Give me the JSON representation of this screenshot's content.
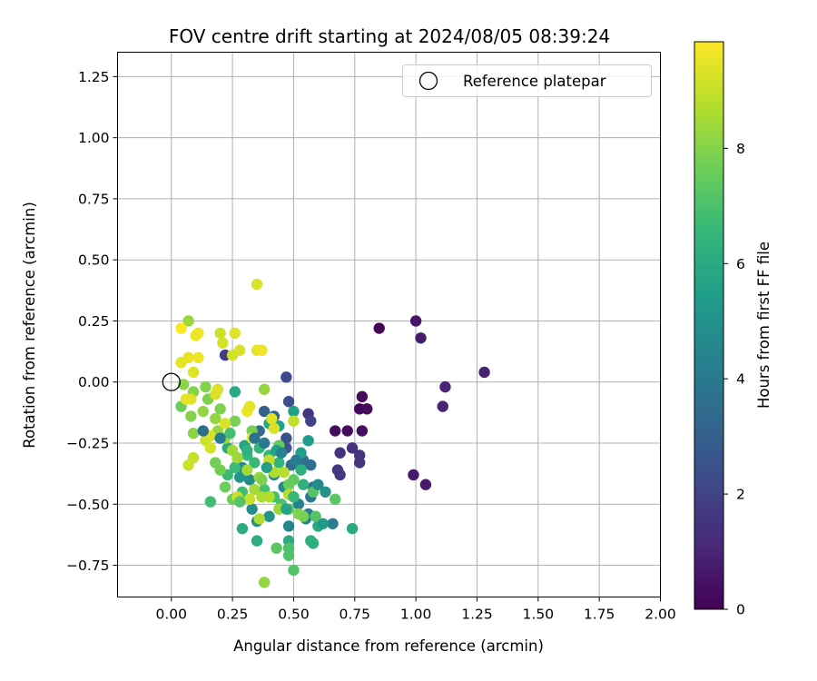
{
  "chart_data": {
    "type": "scatter",
    "title": "FOV centre drift starting at 2024/08/05 08:39:24",
    "xlabel": "Angular distance from reference (arcmin)",
    "ylabel": "Rotation from reference (arcmin)",
    "xlim": [
      -0.22,
      2.0
    ],
    "ylim": [
      -0.88,
      1.35
    ],
    "xticks": [
      "0.00",
      "0.25",
      "0.50",
      "0.75",
      "1.00",
      "1.25",
      "1.50",
      "1.75",
      "2.00"
    ],
    "yticks": [
      "1.25",
      "1.00",
      "0.75",
      "0.50",
      "0.25",
      "0.00",
      "−0.25",
      "−0.50",
      "−0.75"
    ],
    "grid": true,
    "legend": {
      "position": "top-right",
      "entries": [
        "Reference platepar"
      ]
    },
    "reference_point": {
      "x": 0.0,
      "y": 0.0,
      "label": "Reference platepar"
    },
    "colorbar": {
      "label": "Hours from first FF file",
      "range": [
        0,
        9.85
      ],
      "ticks": [
        "0",
        "2",
        "4",
        "6",
        "8"
      ],
      "colormap": "viridis",
      "stops": [
        "#440154",
        "#482878",
        "#3e4989",
        "#31688e",
        "#26828e",
        "#1f9e89",
        "#35b779",
        "#6ece58",
        "#b5de2b",
        "#fde725"
      ]
    },
    "points": [
      {
        "x": 0.85,
        "y": 0.22,
        "c": 0.1
      },
      {
        "x": 1.0,
        "y": 0.25,
        "c": 0.6
      },
      {
        "x": 1.02,
        "y": 0.18,
        "c": 0.8
      },
      {
        "x": 1.28,
        "y": 0.04,
        "c": 0.9
      },
      {
        "x": 1.12,
        "y": -0.02,
        "c": 1.0
      },
      {
        "x": 1.11,
        "y": -0.1,
        "c": 1.0
      },
      {
        "x": 0.78,
        "y": -0.06,
        "c": 0.2
      },
      {
        "x": 0.77,
        "y": -0.11,
        "c": 0.2
      },
      {
        "x": 0.8,
        "y": -0.11,
        "c": 0.3
      },
      {
        "x": 0.67,
        "y": -0.2,
        "c": 0.3
      },
      {
        "x": 0.72,
        "y": -0.2,
        "c": 0.3
      },
      {
        "x": 0.78,
        "y": -0.2,
        "c": 0.4
      },
      {
        "x": 0.69,
        "y": -0.29,
        "c": 1.4
      },
      {
        "x": 0.74,
        "y": -0.27,
        "c": 1.4
      },
      {
        "x": 0.77,
        "y": -0.3,
        "c": 1.5
      },
      {
        "x": 0.77,
        "y": -0.33,
        "c": 1.5
      },
      {
        "x": 0.68,
        "y": -0.36,
        "c": 1.6
      },
      {
        "x": 0.69,
        "y": -0.38,
        "c": 1.6
      },
      {
        "x": 0.99,
        "y": -0.38,
        "c": 0.7
      },
      {
        "x": 1.04,
        "y": -0.42,
        "c": 0.7
      },
      {
        "x": 0.56,
        "y": -0.13,
        "c": 1.5
      },
      {
        "x": 0.57,
        "y": -0.16,
        "c": 2.0
      },
      {
        "x": 0.47,
        "y": 0.02,
        "c": 2.2
      },
      {
        "x": 0.48,
        "y": -0.08,
        "c": 2.4
      },
      {
        "x": 0.47,
        "y": -0.23,
        "c": 2.5
      },
      {
        "x": 0.47,
        "y": -0.27,
        "c": 2.6
      },
      {
        "x": 0.22,
        "y": 0.11,
        "c": 1.8
      },
      {
        "x": 0.38,
        "y": -0.12,
        "c": 3.0
      },
      {
        "x": 0.42,
        "y": -0.14,
        "c": 3.2
      },
      {
        "x": 0.36,
        "y": -0.2,
        "c": 3.4
      },
      {
        "x": 0.49,
        "y": -0.34,
        "c": 3.5
      },
      {
        "x": 0.54,
        "y": -0.32,
        "c": 3.6
      },
      {
        "x": 0.57,
        "y": -0.34,
        "c": 3.6
      },
      {
        "x": 0.58,
        "y": -0.43,
        "c": 3.8
      },
      {
        "x": 0.57,
        "y": -0.47,
        "c": 3.9
      },
      {
        "x": 0.56,
        "y": -0.54,
        "c": 4.0
      },
      {
        "x": 0.66,
        "y": -0.58,
        "c": 4.2
      },
      {
        "x": 0.52,
        "y": -0.5,
        "c": 4.3
      },
      {
        "x": 0.55,
        "y": -0.56,
        "c": 4.4
      },
      {
        "x": 0.48,
        "y": -0.59,
        "c": 4.5
      },
      {
        "x": 0.42,
        "y": -0.38,
        "c": 4.6
      },
      {
        "x": 0.46,
        "y": -0.43,
        "c": 4.7
      },
      {
        "x": 0.33,
        "y": -0.52,
        "c": 4.8
      },
      {
        "x": 0.35,
        "y": -0.57,
        "c": 4.9
      },
      {
        "x": 0.4,
        "y": -0.55,
        "c": 5.0
      },
      {
        "x": 0.29,
        "y": -0.35,
        "c": 4.6
      },
      {
        "x": 0.32,
        "y": -0.4,
        "c": 4.8
      },
      {
        "x": 0.28,
        "y": -0.39,
        "c": 5.2
      },
      {
        "x": 0.56,
        "y": -0.24,
        "c": 5.4
      },
      {
        "x": 0.53,
        "y": -0.29,
        "c": 5.5
      },
      {
        "x": 0.5,
        "y": -0.12,
        "c": 5.6
      },
      {
        "x": 0.44,
        "y": -0.18,
        "c": 5.6
      },
      {
        "x": 0.4,
        "y": -0.17,
        "c": 5.7
      },
      {
        "x": 0.3,
        "y": -0.26,
        "c": 5.8
      },
      {
        "x": 0.26,
        "y": -0.04,
        "c": 5.9
      },
      {
        "x": 0.23,
        "y": -0.27,
        "c": 6.0
      },
      {
        "x": 0.29,
        "y": -0.6,
        "c": 6.0
      },
      {
        "x": 0.35,
        "y": -0.65,
        "c": 6.1
      },
      {
        "x": 0.48,
        "y": -0.65,
        "c": 6.1
      },
      {
        "x": 0.57,
        "y": -0.65,
        "c": 6.2
      },
      {
        "x": 0.58,
        "y": -0.66,
        "c": 6.2
      },
      {
        "x": 0.6,
        "y": -0.59,
        "c": 5.9
      },
      {
        "x": 0.74,
        "y": -0.6,
        "c": 6.0
      },
      {
        "x": 0.53,
        "y": -0.36,
        "c": 6.2
      },
      {
        "x": 0.54,
        "y": -0.42,
        "c": 6.3
      },
      {
        "x": 0.44,
        "y": -0.33,
        "c": 6.4
      },
      {
        "x": 0.4,
        "y": -0.3,
        "c": 6.5
      },
      {
        "x": 0.36,
        "y": -0.27,
        "c": 6.5
      },
      {
        "x": 0.34,
        "y": -0.33,
        "c": 6.6
      },
      {
        "x": 0.31,
        "y": -0.3,
        "c": 6.6
      },
      {
        "x": 0.26,
        "y": -0.35,
        "c": 6.7
      },
      {
        "x": 0.23,
        "y": -0.38,
        "c": 6.7
      },
      {
        "x": 0.16,
        "y": -0.49,
        "c": 6.8
      },
      {
        "x": 0.29,
        "y": -0.45,
        "c": 6.8
      },
      {
        "x": 0.38,
        "y": -0.44,
        "c": 6.9
      },
      {
        "x": 0.42,
        "y": -0.47,
        "c": 6.9
      },
      {
        "x": 0.45,
        "y": -0.5,
        "c": 7.0
      },
      {
        "x": 0.48,
        "y": -0.68,
        "c": 7.0
      },
      {
        "x": 0.48,
        "y": -0.71,
        "c": 7.1
      },
      {
        "x": 0.5,
        "y": -0.77,
        "c": 7.1
      },
      {
        "x": 0.59,
        "y": -0.55,
        "c": 7.2
      },
      {
        "x": 0.58,
        "y": -0.45,
        "c": 7.2
      },
      {
        "x": 0.67,
        "y": -0.48,
        "c": 7.3
      },
      {
        "x": 0.43,
        "y": -0.68,
        "c": 7.3
      },
      {
        "x": 0.5,
        "y": -0.4,
        "c": 7.4
      },
      {
        "x": 0.48,
        "y": -0.52,
        "c": 7.4
      },
      {
        "x": 0.48,
        "y": -0.42,
        "c": 7.5
      },
      {
        "x": 0.44,
        "y": -0.26,
        "c": 7.5
      },
      {
        "x": 0.25,
        "y": -0.48,
        "c": 7.6
      },
      {
        "x": 0.22,
        "y": -0.43,
        "c": 7.6
      },
      {
        "x": 0.18,
        "y": -0.33,
        "c": 7.7
      },
      {
        "x": 0.2,
        "y": -0.36,
        "c": 7.7
      },
      {
        "x": 0.33,
        "y": -0.2,
        "c": 7.8
      },
      {
        "x": 0.26,
        "y": -0.16,
        "c": 7.8
      },
      {
        "x": 0.2,
        "y": -0.11,
        "c": 7.9
      },
      {
        "x": 0.15,
        "y": -0.07,
        "c": 7.9
      },
      {
        "x": 0.14,
        "y": -0.02,
        "c": 8.0
      },
      {
        "x": 0.09,
        "y": -0.04,
        "c": 8.0
      },
      {
        "x": 0.08,
        "y": -0.14,
        "c": 8.0
      },
      {
        "x": 0.04,
        "y": -0.1,
        "c": 7.6
      },
      {
        "x": 0.09,
        "y": -0.21,
        "c": 8.1
      },
      {
        "x": 0.05,
        "y": -0.01,
        "c": 8.1
      },
      {
        "x": 0.13,
        "y": -0.12,
        "c": 8.2
      },
      {
        "x": 0.18,
        "y": -0.15,
        "c": 8.2
      },
      {
        "x": 0.19,
        "y": -0.2,
        "c": 8.3
      },
      {
        "x": 0.22,
        "y": -0.23,
        "c": 8.3
      },
      {
        "x": 0.25,
        "y": -0.28,
        "c": 8.4
      },
      {
        "x": 0.27,
        "y": -0.31,
        "c": 8.4
      },
      {
        "x": 0.31,
        "y": -0.36,
        "c": 8.5
      },
      {
        "x": 0.34,
        "y": -0.44,
        "c": 8.5
      },
      {
        "x": 0.37,
        "y": -0.47,
        "c": 8.6
      },
      {
        "x": 0.36,
        "y": -0.56,
        "c": 8.6
      },
      {
        "x": 0.38,
        "y": -0.82,
        "c": 8.2
      },
      {
        "x": 0.38,
        "y": -0.03,
        "c": 8.3
      },
      {
        "x": 0.4,
        "y": -0.47,
        "c": 8.7
      },
      {
        "x": 0.42,
        "y": -0.37,
        "c": 8.7
      },
      {
        "x": 0.46,
        "y": -0.37,
        "c": 8.8
      },
      {
        "x": 0.48,
        "y": -0.46,
        "c": 8.8
      },
      {
        "x": 0.5,
        "y": -0.16,
        "c": 8.9
      },
      {
        "x": 0.4,
        "y": -0.32,
        "c": 8.9
      },
      {
        "x": 0.32,
        "y": -0.48,
        "c": 9.0
      },
      {
        "x": 0.27,
        "y": -0.47,
        "c": 9.0
      },
      {
        "x": 0.09,
        "y": -0.31,
        "c": 9.0
      },
      {
        "x": 0.07,
        "y": -0.34,
        "c": 9.1
      },
      {
        "x": 0.14,
        "y": -0.24,
        "c": 9.1
      },
      {
        "x": 0.16,
        "y": -0.27,
        "c": 9.2
      },
      {
        "x": 0.16,
        "y": -0.22,
        "c": 9.2
      },
      {
        "x": 0.22,
        "y": -0.17,
        "c": 9.3
      },
      {
        "x": 0.19,
        "y": -0.03,
        "c": 9.3
      },
      {
        "x": 0.18,
        "y": -0.05,
        "c": 9.3
      },
      {
        "x": 0.09,
        "y": 0.04,
        "c": 9.4
      },
      {
        "x": 0.08,
        "y": -0.07,
        "c": 9.4
      },
      {
        "x": 0.06,
        "y": -0.07,
        "c": 9.5
      },
      {
        "x": 0.04,
        "y": 0.08,
        "c": 9.5
      },
      {
        "x": 0.07,
        "y": 0.1,
        "c": 9.5
      },
      {
        "x": 0.11,
        "y": 0.1,
        "c": 9.6
      },
      {
        "x": 0.1,
        "y": 0.19,
        "c": 9.6
      },
      {
        "x": 0.11,
        "y": 0.2,
        "c": 9.6
      },
      {
        "x": 0.07,
        "y": 0.25,
        "c": 8.3
      },
      {
        "x": 0.2,
        "y": 0.2,
        "c": 9.1
      },
      {
        "x": 0.21,
        "y": 0.16,
        "c": 9.2
      },
      {
        "x": 0.25,
        "y": 0.11,
        "c": 9.2
      },
      {
        "x": 0.26,
        "y": 0.2,
        "c": 9.4
      },
      {
        "x": 0.28,
        "y": 0.13,
        "c": 9.3
      },
      {
        "x": 0.35,
        "y": 0.13,
        "c": 9.5
      },
      {
        "x": 0.37,
        "y": 0.13,
        "c": 9.6
      },
      {
        "x": 0.35,
        "y": 0.4,
        "c": 9.3
      },
      {
        "x": 0.04,
        "y": 0.22,
        "c": 9.8
      },
      {
        "x": 0.31,
        "y": -0.12,
        "c": 9.6
      },
      {
        "x": 0.32,
        "y": -0.1,
        "c": 9.5
      },
      {
        "x": 0.33,
        "y": -0.23,
        "c": 9.7
      },
      {
        "x": 0.41,
        "y": -0.15,
        "c": 9.4
      },
      {
        "x": 0.42,
        "y": -0.19,
        "c": 9.3
      },
      {
        "x": 0.36,
        "y": -0.39,
        "c": 8.4
      },
      {
        "x": 0.44,
        "y": -0.52,
        "c": 8.4
      },
      {
        "x": 0.52,
        "y": -0.54,
        "c": 8.0
      },
      {
        "x": 0.54,
        "y": -0.55,
        "c": 7.8
      },
      {
        "x": 0.63,
        "y": -0.45,
        "c": 5.0
      },
      {
        "x": 0.62,
        "y": -0.58,
        "c": 5.3
      },
      {
        "x": 0.39,
        "y": -0.35,
        "c": 5.5
      },
      {
        "x": 0.43,
        "y": -0.28,
        "c": 5.6
      },
      {
        "x": 0.47,
        "y": -0.52,
        "c": 5.7
      },
      {
        "x": 0.28,
        "y": -0.49,
        "c": 7.2
      },
      {
        "x": 0.34,
        "y": -0.23,
        "c": 3.8
      },
      {
        "x": 0.38,
        "y": -0.25,
        "c": 4.0
      },
      {
        "x": 0.45,
        "y": -0.29,
        "c": 4.4
      },
      {
        "x": 0.31,
        "y": -0.28,
        "c": 6.3
      },
      {
        "x": 0.24,
        "y": -0.21,
        "c": 6.9
      },
      {
        "x": 0.13,
        "y": -0.2,
        "c": 3.5
      },
      {
        "x": 0.2,
        "y": -0.23,
        "c": 4.1
      },
      {
        "x": 0.37,
        "y": -0.4,
        "c": 7.9
      },
      {
        "x": 0.5,
        "y": -0.47,
        "c": 6.6
      },
      {
        "x": 0.6,
        "y": -0.42,
        "c": 4.8
      },
      {
        "x": 0.51,
        "y": -0.32,
        "c": 4.2
      }
    ]
  }
}
